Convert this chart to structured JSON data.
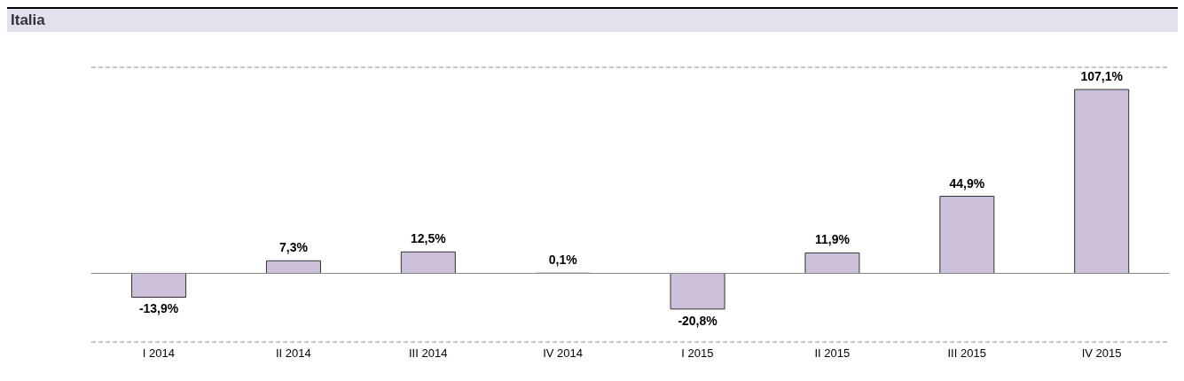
{
  "chart_data": {
    "type": "bar",
    "title": "Italia",
    "categories": [
      "I 2014",
      "II 2014",
      "III 2014",
      "IV 2014",
      "I 2015",
      "II 2015",
      "III 2015",
      "IV 2015"
    ],
    "values": [
      -13.9,
      7.3,
      12.5,
      0.1,
      -20.8,
      11.9,
      44.9,
      107.1
    ],
    "value_labels": [
      "-13,9%",
      "7,3%",
      "12,5%",
      "0,1%",
      "-20,8%",
      "11,9%",
      "44,9%",
      "107,1%"
    ],
    "color": "#ccc0da",
    "ylim": [
      -40,
      120
    ],
    "tick_labels": "x",
    "grid": "y"
  }
}
